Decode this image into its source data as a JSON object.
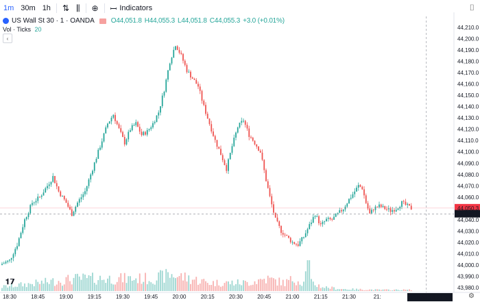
{
  "toolbar": {
    "interval_1": "1m",
    "interval_2": "30m",
    "interval_3": "1h",
    "indicators_label": "Indicators",
    "icons": [
      "candle-type-icon",
      "bar-type-icon",
      "add-compare-icon",
      "indicators-icon",
      "camera-icon"
    ]
  },
  "legend": {
    "symbol": "US Wall St 30 · 1 · OANDA",
    "open": "O44,051.8",
    "high": "H44,055.3",
    "low": "L44,051.8",
    "close": "C44,055.3",
    "change": "+3.0 (+0.01%)"
  },
  "volume_legend": {
    "label": "Vol · Ticks",
    "value": "20"
  },
  "colors": {
    "up": "#26a69a",
    "down": "#ef5350",
    "price_tag_red": "#f23645",
    "crosshair_tag": "#131722"
  },
  "chart_data": {
    "type": "candlestick",
    "yticks": [
      "44,210.0",
      "44,200.0",
      "44,190.0",
      "44,180.0",
      "44,170.0",
      "44,160.0",
      "44,150.0",
      "44,140.0",
      "44,130.0",
      "44,120.0",
      "44,110.0",
      "44,100.0",
      "44,090.0",
      "44,080.0",
      "44,070.0",
      "44,060.0",
      "44,050.0",
      "44,040.0",
      "44,030.0",
      "44,020.0",
      "44,010.0",
      "44,000.0",
      "43,990.0",
      "43,980.0"
    ],
    "xticks": [
      "18:30",
      "18:45",
      "19:00",
      "19:15",
      "19:30",
      "19:45",
      "20:00",
      "20:15",
      "20:30",
      "20:45",
      "21:00",
      "21:15",
      "21:30",
      "21:"
    ],
    "last_price_label": "44,050.3",
    "crosshair_price_label": "44,045.0",
    "crosshair_time_label": "08 Nov '24  21:55",
    "ylim": [
      43980,
      44215
    ],
    "close_path": [
      [
        0,
        44001
      ],
      [
        4,
        44004
      ],
      [
        8,
        44018
      ],
      [
        12,
        44040
      ],
      [
        16,
        44055
      ],
      [
        20,
        44060
      ],
      [
        24,
        44070
      ],
      [
        27,
        44078
      ],
      [
        30,
        44065
      ],
      [
        34,
        44055
      ],
      [
        37,
        44045
      ],
      [
        40,
        44055
      ],
      [
        44,
        44065
      ],
      [
        48,
        44085
      ],
      [
        52,
        44105
      ],
      [
        56,
        44125
      ],
      [
        59,
        44133
      ],
      [
        62,
        44120
      ],
      [
        65,
        44108
      ],
      [
        68,
        44120
      ],
      [
        71,
        44125
      ],
      [
        74,
        44115
      ],
      [
        77,
        44118
      ],
      [
        80,
        44125
      ],
      [
        83,
        44135
      ],
      [
        86,
        44155
      ],
      [
        89,
        44180
      ],
      [
        92,
        44195
      ],
      [
        95,
        44185
      ],
      [
        98,
        44172
      ],
      [
        101,
        44165
      ],
      [
        104,
        44158
      ],
      [
        107,
        44140
      ],
      [
        110,
        44125
      ],
      [
        113,
        44110
      ],
      [
        116,
        44098
      ],
      [
        119,
        44085
      ],
      [
        122,
        44105
      ],
      [
        125,
        44122
      ],
      [
        128,
        44128
      ],
      [
        131,
        44115
      ],
      [
        134,
        44108
      ],
      [
        137,
        44100
      ],
      [
        140,
        44075
      ],
      [
        142,
        44060
      ],
      [
        145,
        44040
      ],
      [
        148,
        44030
      ],
      [
        151,
        44025
      ],
      [
        154,
        44020
      ],
      [
        157,
        44018
      ],
      [
        160,
        44025
      ],
      [
        163,
        44035
      ],
      [
        166,
        44045
      ],
      [
        169,
        44035
      ],
      [
        172,
        44040
      ],
      [
        175,
        44040
      ],
      [
        178,
        44045
      ],
      [
        181,
        44050
      ],
      [
        184,
        44058
      ],
      [
        187,
        44065
      ],
      [
        189,
        44070
      ],
      [
        191,
        44068
      ],
      [
        193,
        44055
      ],
      [
        195,
        44045
      ],
      [
        197,
        44050
      ],
      [
        200,
        44052
      ],
      [
        203,
        44050
      ],
      [
        206,
        44048
      ],
      [
        209,
        44050
      ],
      [
        212,
        44055
      ],
      [
        215,
        44052
      ],
      [
        217,
        44050
      ]
    ],
    "volume_profile": [
      [
        0,
        1
      ],
      [
        20,
        2
      ],
      [
        40,
        3
      ],
      [
        60,
        3
      ],
      [
        80,
        3
      ],
      [
        90,
        4
      ],
      [
        100,
        3
      ],
      [
        110,
        2
      ],
      [
        120,
        2
      ],
      [
        130,
        2
      ],
      [
        140,
        3
      ],
      [
        150,
        2
      ],
      [
        155,
        3
      ],
      [
        160,
        2
      ],
      [
        162,
        12
      ],
      [
        164,
        2
      ],
      [
        170,
        1
      ],
      [
        180,
        0.5
      ],
      [
        200,
        0.3
      ],
      [
        217,
        0.3
      ]
    ]
  }
}
